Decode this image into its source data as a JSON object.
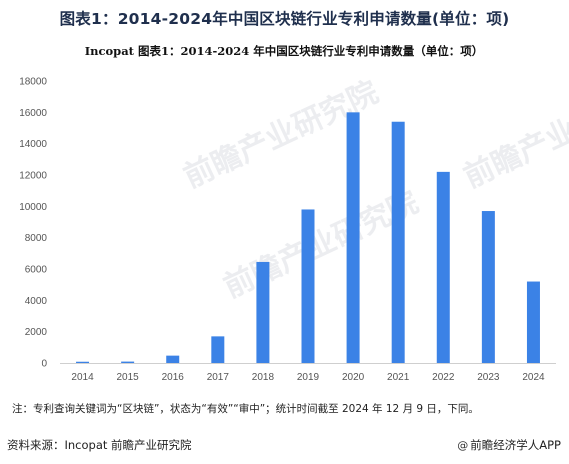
{
  "page": {
    "title": "图表1：2014-2024年中国区块链行业专利申请数量(单位：项)",
    "note": "注：专利查询关键词为“区块链”，状态为“有效”“审中”；统计时间截至 2024 年 12 月 9 日，下同。",
    "source": "资料来源：Incopat 前瞻产业研究院",
    "brand": "前瞻经济学人APP",
    "brand_icon": "at-icon",
    "watermark": "前瞻产业研究院"
  },
  "chart_data": {
    "type": "bar",
    "title": "Incopat  图表1：2014-2024 年中国区块链行业专利申请数量（单位：项）",
    "categories": [
      "2014",
      "2015",
      "2016",
      "2017",
      "2018",
      "2019",
      "2020",
      "2021",
      "2022",
      "2023",
      "2024"
    ],
    "values": [
      80,
      90,
      470,
      1700,
      6450,
      9800,
      16000,
      15400,
      12200,
      9700,
      5200
    ],
    "ylim": [
      0,
      18000
    ],
    "yticks": [
      "0",
      "2000",
      "4000",
      "6000",
      "8000",
      "10000",
      "12000",
      "14000",
      "16000",
      "18000"
    ],
    "grid": false,
    "legend": "none",
    "bar_color": "#3b82e6"
  }
}
